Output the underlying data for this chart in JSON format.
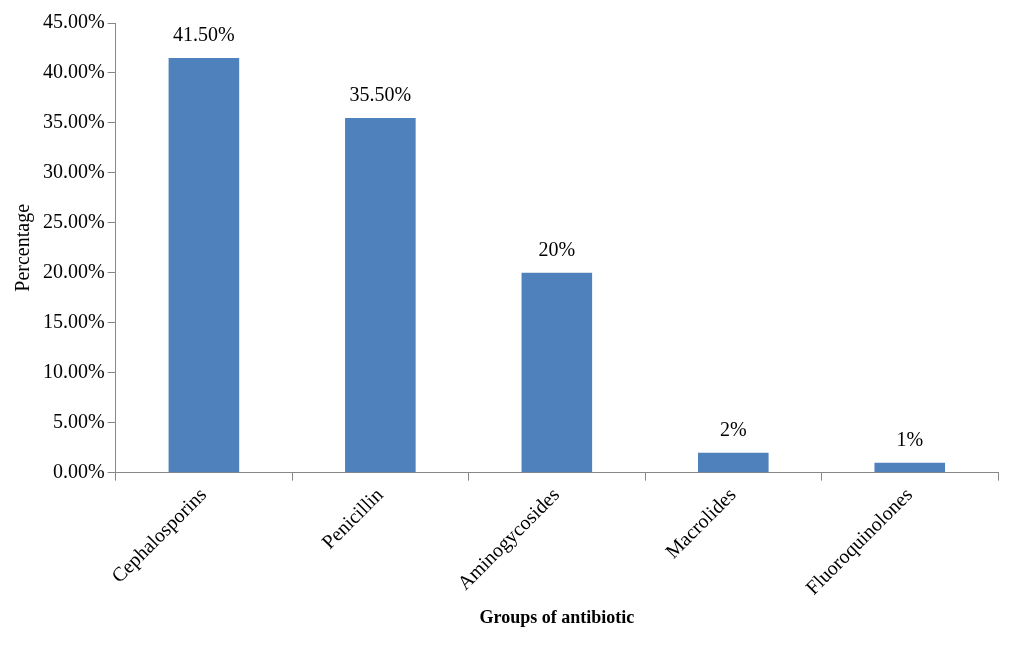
{
  "chart_data": {
    "type": "bar",
    "xlabel": "Groups of antibiotic",
    "ylabel": "Percentage",
    "categories": [
      "Cephalosporins",
      "Penicillin",
      "Aminogycosides",
      "Macrolides",
      "Fluoroquinolones"
    ],
    "values": [
      41.5,
      35.5,
      20,
      2,
      1
    ],
    "value_labels": [
      "41.50%",
      "35.50%",
      "20%",
      "2%",
      "1%"
    ],
    "color": "#4f81bd",
    "ylim": [
      0,
      45
    ],
    "yticks": [
      {
        "value": 0,
        "label": "0.00%"
      },
      {
        "value": 5,
        "label": "5.00%"
      },
      {
        "value": 10,
        "label": "10.00%"
      },
      {
        "value": 15,
        "label": "15.00%"
      },
      {
        "value": 20,
        "label": "20.00%"
      },
      {
        "value": 25,
        "label": "25.00%"
      },
      {
        "value": 30,
        "label": "30.00%"
      },
      {
        "value": 35,
        "label": "35.00%"
      },
      {
        "value": 40,
        "label": "40.00%"
      },
      {
        "value": 45,
        "label": "45.00%"
      }
    ],
    "grid": false,
    "legend": false
  }
}
